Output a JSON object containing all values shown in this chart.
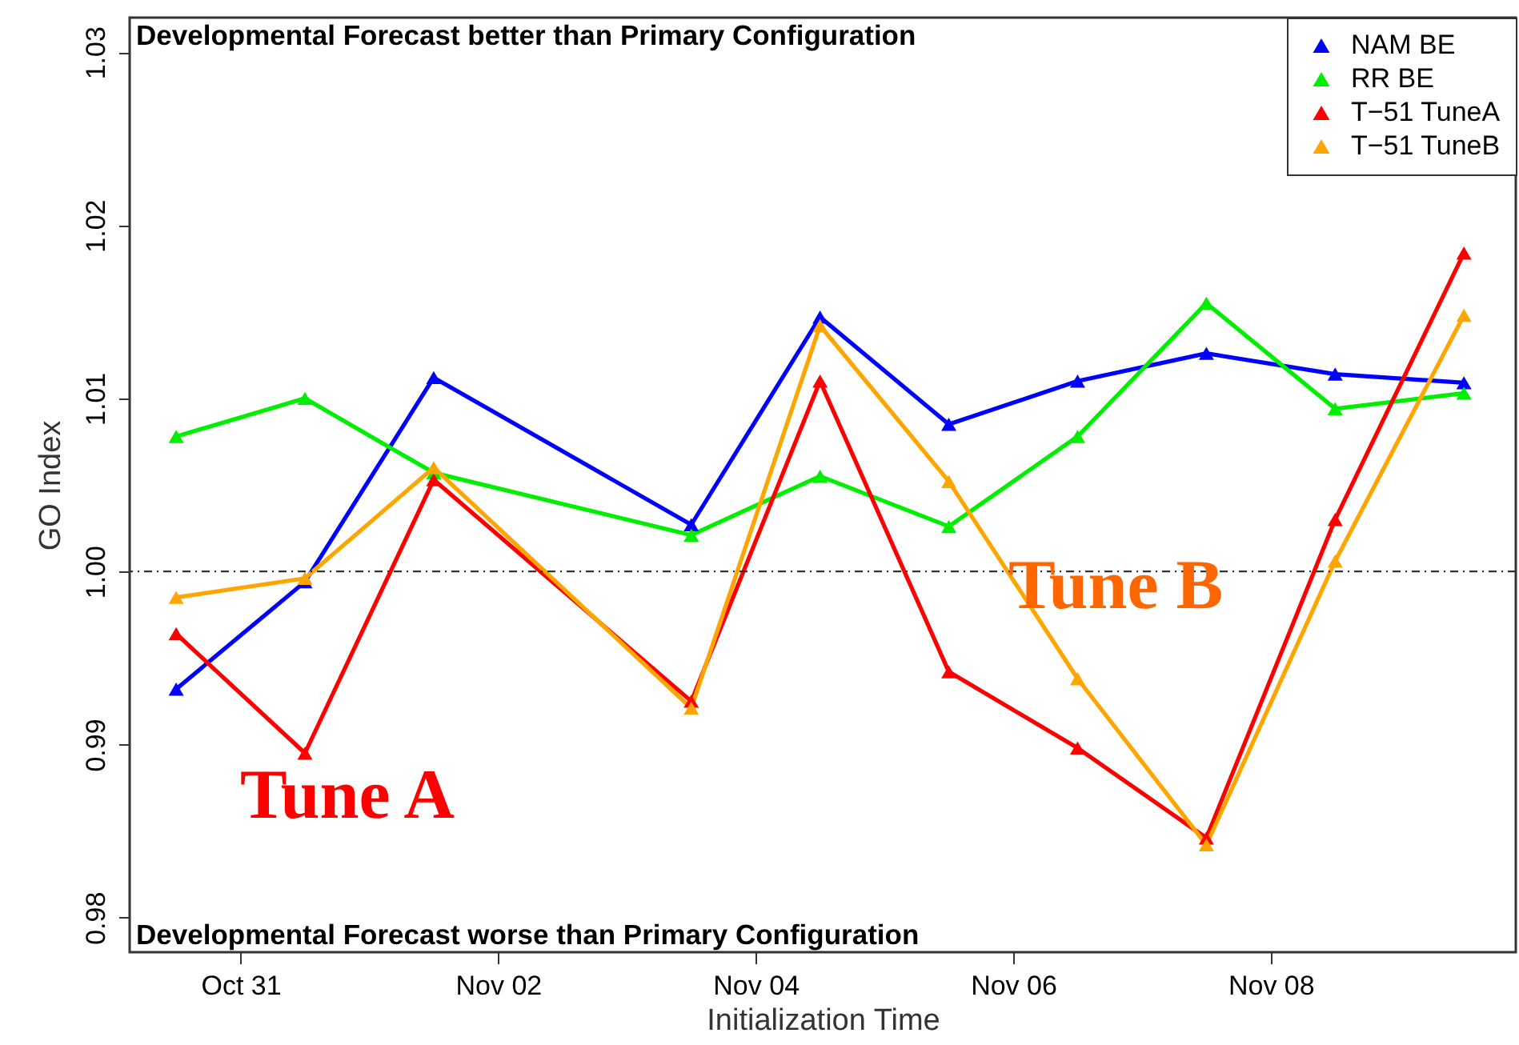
{
  "chart_data": {
    "type": "line",
    "xlabel": "Initialization Time",
    "ylabel": "GO Index",
    "x": [
      "--10-30T12:00",
      "--10-31T12:00",
      "--11-01T12:00",
      "--11-03T12:00",
      "--11-04T12:00",
      "--11-05T12:00",
      "--11-06T12:00",
      "--11-07T12:00",
      "--11-08T12:00",
      "--11-09T12:00"
    ],
    "series": [
      {
        "name": "NAM BE",
        "color": "#0000ff",
        "values": [
          0.9932,
          0.9994,
          1.0112,
          1.0027,
          1.0147,
          1.0085,
          1.011,
          1.0126,
          1.0114,
          1.0109
        ]
      },
      {
        "name": "RR BE",
        "color": "#00ee00",
        "values": [
          1.0078,
          1.01,
          1.0057,
          1.0021,
          1.0055,
          1.0026,
          1.0078,
          1.0155,
          1.0094,
          1.0103
        ]
      },
      {
        "name": "T−51 TuneA",
        "color": "#ff0000",
        "values": [
          0.9964,
          0.9895,
          1.0053,
          0.9925,
          1.011,
          0.9942,
          0.9898,
          0.9846,
          1.003,
          1.0184
        ]
      },
      {
        "name": "T−51 TuneB",
        "color": "#ffa500",
        "values": [
          0.9985,
          0.9996,
          1.006,
          0.9921,
          1.0142,
          1.0052,
          0.9938,
          0.9842,
          1.0006,
          1.0148
        ]
      }
    ],
    "xlim": [
      "--10-30T03:20",
      "--11-09T21:40"
    ],
    "xticks": [
      {
        "value": "--10-31",
        "label": "Oct 31"
      },
      {
        "value": "--11-02",
        "label": "Nov 02"
      },
      {
        "value": "--11-04",
        "label": "Nov 04"
      },
      {
        "value": "--11-06",
        "label": "Nov 06"
      },
      {
        "value": "--11-08",
        "label": "Nov 08"
      }
    ],
    "ylim": [
      0.978,
      1.032
    ],
    "yticks": [
      0.98,
      0.99,
      {
        "value": 1.0,
        "label": "1.00"
      },
      1.01,
      1.02,
      1.03
    ],
    "ref_lines": [
      {
        "axis": "y",
        "value": 1.0,
        "color": "#333333",
        "line_style": "dashed"
      }
    ],
    "annotations": [
      "Developmental Forecast better than Primary Configuration",
      "Developmental Forecast worse than Primary Configuration",
      "Tune A",
      "Tune B"
    ],
    "legend": "top right",
    "marker": "triangle",
    "line_style": "solid",
    "grid": false
  }
}
